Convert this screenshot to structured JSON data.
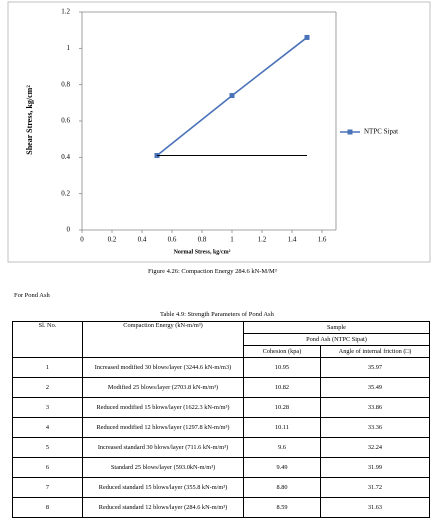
{
  "chart_data": {
    "type": "line",
    "x_label": "Normal Stress, kg/cm²",
    "y_label": "Shear Stress, kg/cm²",
    "series": [
      {
        "name": "NTPC Sipat",
        "color": "#4a72b8",
        "x": [
          0.5,
          1,
          1.5
        ],
        "values": [
          0.41,
          0.74,
          1.06
        ]
      },
      {
        "color": "#000000",
        "x": [
          0.5,
          1.5
        ],
        "values": [
          0.41,
          0.41
        ]
      }
    ],
    "xlim": [
      0,
      1.6
    ],
    "xticks": [
      0,
      0.2,
      0.4,
      0.6,
      0.8,
      1,
      1.2,
      1.4,
      1.6
    ],
    "ylim": [
      0,
      1.2
    ],
    "yticks": [
      0,
      0.2,
      0.4,
      0.6,
      0.8,
      1,
      1.2
    ],
    "grid": false,
    "legend": "right"
  },
  "figure_caption": "Figure 4.26: Compaction Energy 284.6 kN-M/M³",
  "section_text": "For Pond Ash",
  "table": {
    "title": "Table 4.9: Strength Parameters of Pond Ash",
    "header": {
      "sl_no": "Sl. No.",
      "energy": "Compaction Energy (kN-m/m³)",
      "sample": "Sample",
      "group": "Pond Ash (NTPC Sipat)",
      "cohesion": "Cohesion (kpa)",
      "angle": "Angle of internal friction (□)"
    },
    "rows": [
      [
        "1",
        "Increased modified 30 blows/layer (3244.6 kN-m/m3)",
        "10.95",
        "35.97"
      ],
      [
        "2",
        "Modified 25 blows/layer (2703.8 kN-m/m³)",
        "10.82",
        "35.49"
      ],
      [
        "3",
        "Reduced modified 15 blows/layer (1622.3 kN-m/m³)",
        "10.28",
        "33.86"
      ],
      [
        "4",
        "Reduced modified 12 blows/layer (1297.8 kN-m/m³)",
        "10.11",
        "33.36"
      ],
      [
        "5",
        "Increased standard 30 blows/layer (711.6 kN-m/m³)",
        "9.6",
        "32.24"
      ],
      [
        "6",
        "Standard 25 blows/layer (593.0kN-m/m³)",
        "9.49",
        "31.99"
      ],
      [
        "7",
        "Reduced standard 15 blows/layer (355.8 kN-m/m³)",
        "8.80",
        "31.72"
      ],
      [
        "8",
        "Reduced standard 12 blows/layer (284.6 kN-m/m³)",
        "8.59",
        "31.63"
      ]
    ]
  }
}
